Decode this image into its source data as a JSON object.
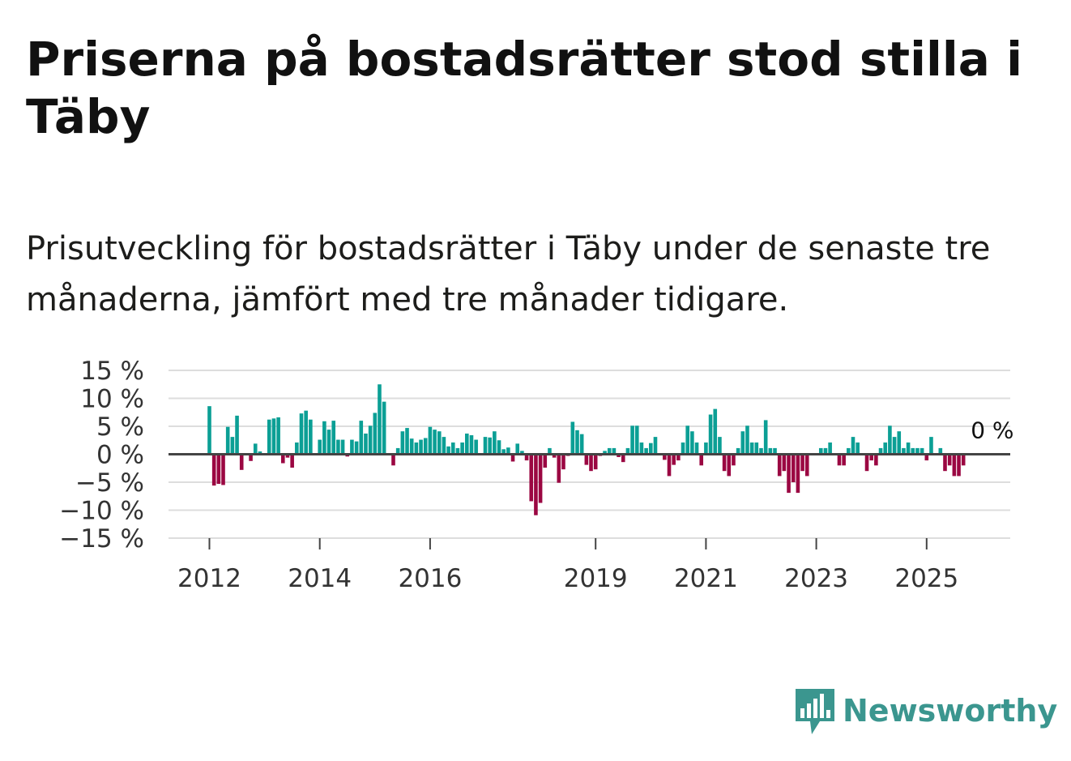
{
  "title": "Priserna på bostadsrätter stod stilla i Täby",
  "subtitle": "Prisutveckling för bostadsrätter i Täby under de senaste tre månaderna, jämfört med tre månader tidigare.",
  "brand": "Newsworthy",
  "colors": {
    "positive": "#0b9f95",
    "negative": "#9b0742",
    "zero_line": "#444444",
    "grid": "#dddddd",
    "brand": "#3b968f"
  },
  "chart_data": {
    "type": "bar",
    "ylim": [
      -15,
      15
    ],
    "y_ticks": [
      {
        "value": 15,
        "label": "15 %"
      },
      {
        "value": 10,
        "label": "10 %"
      },
      {
        "value": 5,
        "label": "5 %"
      },
      {
        "value": 0,
        "label": "0 %"
      },
      {
        "value": -5,
        "label": "−5 %"
      },
      {
        "value": -10,
        "label": "−10 %"
      },
      {
        "value": -15,
        "label": "−15 %"
      }
    ],
    "x_start": "2012-01",
    "x_ticks": [
      {
        "index": 0,
        "label": "2012"
      },
      {
        "index": 24,
        "label": "2014"
      },
      {
        "index": 48,
        "label": "2016"
      },
      {
        "index": 84,
        "label": "2019"
      },
      {
        "index": 108,
        "label": "2021"
      },
      {
        "index": 132,
        "label": "2023"
      },
      {
        "index": 156,
        "label": "2025"
      }
    ],
    "last_value_label": "0 %",
    "values": [
      8.6,
      -5.6,
      -5.3,
      -5.5,
      4.9,
      3.1,
      6.9,
      -2.8,
      0,
      -1.2,
      1.9,
      0.5,
      0,
      6.2,
      6.4,
      6.6,
      -1.6,
      -0.6,
      -2.4,
      2.1,
      7.3,
      7.8,
      6.2,
      0,
      2.6,
      5.9,
      4.4,
      6.0,
      2.6,
      2.6,
      -0.4,
      2.6,
      2.3,
      6.0,
      3.7,
      5.1,
      7.4,
      12.5,
      9.4,
      0,
      -2.0,
      1.1,
      4.1,
      4.7,
      2.8,
      2.1,
      2.6,
      2.9,
      4.9,
      4.4,
      4.1,
      3.1,
      1.4,
      2.1,
      1.1,
      2.1,
      3.7,
      3.4,
      2.6,
      0,
      3.1,
      3.0,
      4.1,
      2.5,
      0.9,
      1.2,
      -1.3,
      1.9,
      0.6,
      -1.1,
      -8.4,
      -10.9,
      -8.7,
      -2.4,
      1.1,
      -0.6,
      -5.1,
      -2.7,
      -0.3,
      5.8,
      4.3,
      3.6,
      -1.9,
      -3.0,
      -2.7,
      -0.3,
      0.6,
      1.1,
      1.1,
      -0.5,
      -1.4,
      1.1,
      5.1,
      5.1,
      2.1,
      1.1,
      2.0,
      3.1,
      0,
      -1.0,
      -3.9,
      -1.9,
      -1.1,
      2.1,
      5.1,
      4.1,
      2.1,
      -2.0,
      2.1,
      7.1,
      8.1,
      3.1,
      -3.0,
      -3.9,
      -2.0,
      1.1,
      4.1,
      5.1,
      2.1,
      2.1,
      1.1,
      6.1,
      1.1,
      1.1,
      -3.9,
      -3.0,
      -6.9,
      -5.0,
      -6.9,
      -3.0,
      -3.9,
      0,
      0,
      1.1,
      1.1,
      2.1,
      0,
      -2.0,
      -2.0,
      1.1,
      3.1,
      2.1,
      0,
      -3.0,
      -1.1,
      -2.0,
      1.1,
      2.1,
      5.1,
      3.1,
      4.1,
      1.1,
      2.1,
      1.1,
      1.1,
      1.1,
      -1.1,
      3.1,
      0,
      1.1,
      -3.0,
      -2.0,
      -3.9,
      -3.9,
      -2.0,
      0
    ]
  }
}
